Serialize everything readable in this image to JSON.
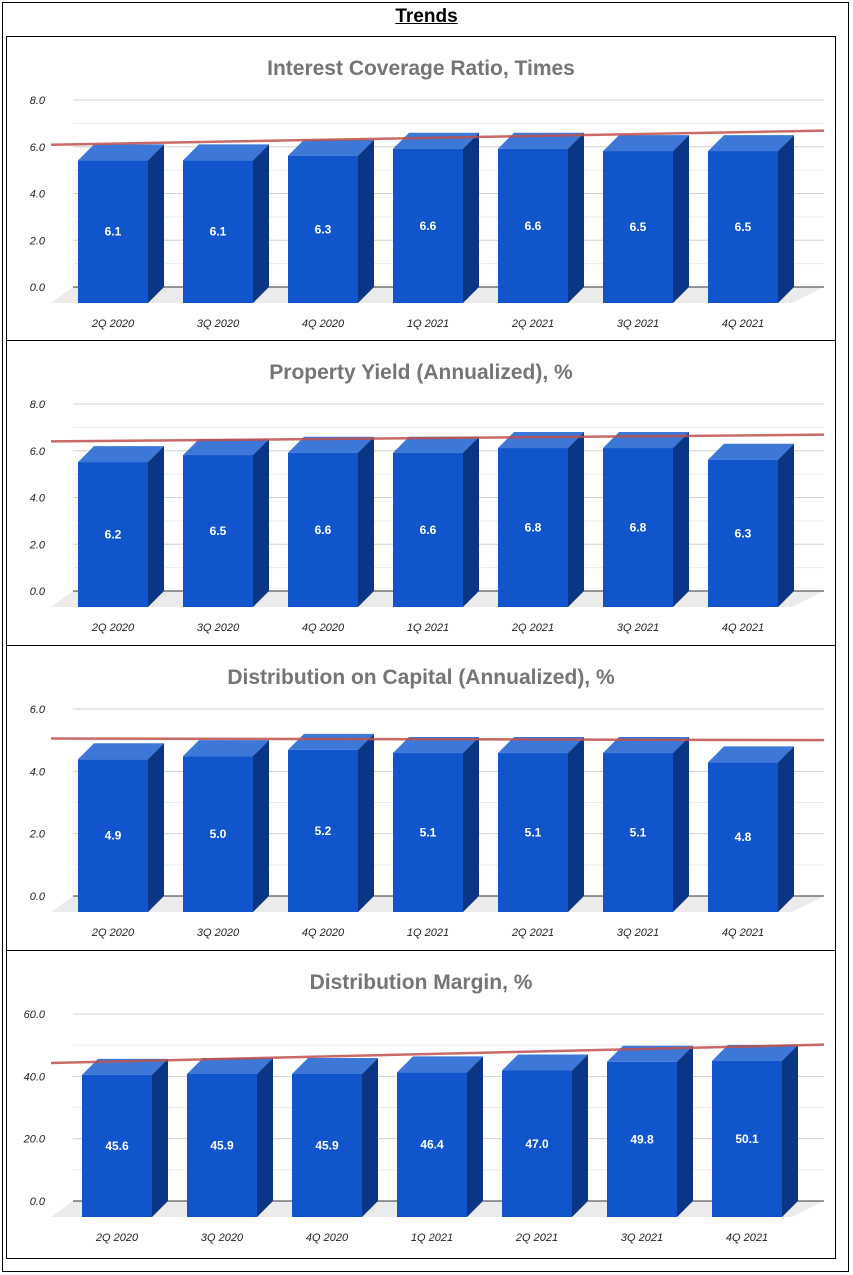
{
  "page_title": "Trends",
  "colors": {
    "bar_front": "#1155cc",
    "bar_top": "#3d78d8",
    "bar_side": "#0b3585",
    "trendline": "#c0504d",
    "title": "#757575",
    "floor": "#ebebeb"
  },
  "chart_data": [
    {
      "type": "bar",
      "title": "Interest Coverage Ratio, Times",
      "style": "3d",
      "trendline": "linear",
      "categories": [
        "2Q 2020",
        "3Q 2020",
        "4Q 2020",
        "1Q 2021",
        "2Q 2021",
        "3Q 2021",
        "4Q 2021"
      ],
      "values": [
        6.1,
        6.1,
        6.3,
        6.6,
        6.6,
        6.5,
        6.5
      ],
      "value_labels": [
        "6.1",
        "6.1",
        "6.3",
        "6.6",
        "6.6",
        "6.5",
        "6.5"
      ],
      "yticks": [
        "0.0",
        "2.0",
        "4.0",
        "6.0",
        "8.0"
      ],
      "ylim": [
        0,
        8
      ],
      "grid": true
    },
    {
      "type": "bar",
      "title": "Property Yield (Annualized), %",
      "style": "3d",
      "trendline": "linear",
      "categories": [
        "2Q 2020",
        "3Q 2020",
        "4Q 2020",
        "1Q 2021",
        "2Q 2021",
        "3Q 2021",
        "4Q 2021"
      ],
      "values": [
        6.2,
        6.5,
        6.6,
        6.6,
        6.8,
        6.8,
        6.3
      ],
      "value_labels": [
        "6.2",
        "6.5",
        "6.6",
        "6.6",
        "6.8",
        "6.8",
        "6.3"
      ],
      "yticks": [
        "0.0",
        "2.0",
        "4.0",
        "6.0",
        "8.0"
      ],
      "ylim": [
        0,
        8
      ],
      "grid": true
    },
    {
      "type": "bar",
      "title": "Distribution on Capital (Annualized), %",
      "style": "3d",
      "trendline": "linear",
      "categories": [
        "2Q 2020",
        "3Q 2020",
        "4Q 2020",
        "1Q 2021",
        "2Q 2021",
        "3Q 2021",
        "4Q 2021"
      ],
      "values": [
        4.9,
        5.0,
        5.2,
        5.1,
        5.1,
        5.1,
        4.8
      ],
      "value_labels": [
        "4.9",
        "5.0",
        "5.2",
        "5.1",
        "5.1",
        "5.1",
        "4.8"
      ],
      "yticks": [
        "0.0",
        "2.0",
        "4.0",
        "6.0"
      ],
      "ylim": [
        0,
        6
      ],
      "grid": true
    },
    {
      "type": "bar",
      "title": "Distribution Margin, %",
      "style": "3d",
      "trendline": "linear",
      "categories": [
        "2Q 2020",
        "3Q 2020",
        "4Q 2020",
        "1Q 2021",
        "2Q 2021",
        "3Q 2021",
        "4Q 2021"
      ],
      "values": [
        45.6,
        45.9,
        45.9,
        46.4,
        47.0,
        49.8,
        50.1
      ],
      "value_labels": [
        "45.6",
        "45.9",
        "45.9",
        "46.4",
        "47.0",
        "49.8",
        "50.1"
      ],
      "yticks": [
        "0.0",
        "20.0",
        "40.0",
        "60.0"
      ],
      "ylim": [
        0,
        60
      ],
      "grid": true
    }
  ]
}
